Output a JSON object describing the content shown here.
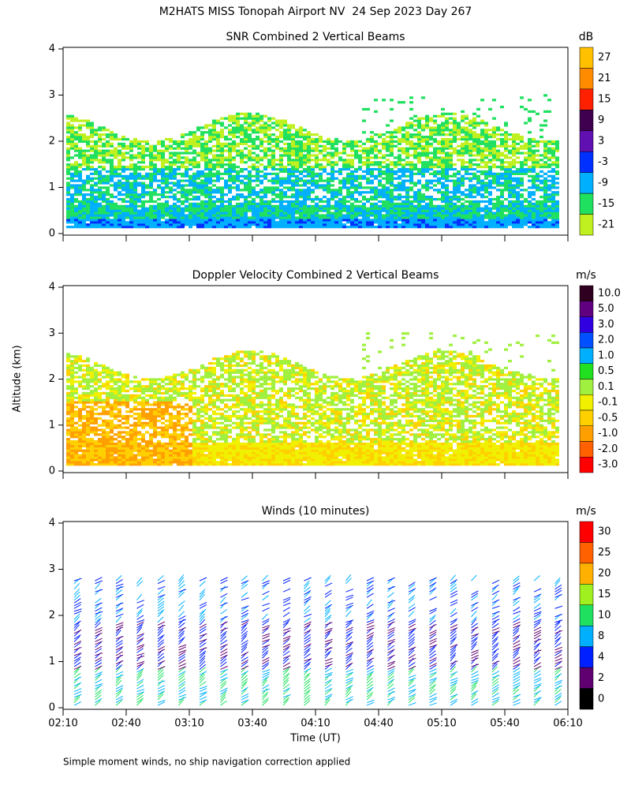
{
  "title": "M2HATS MISS Tonopah Airport NV  24 Sep 2023 Day 267",
  "y_axis_label": "Altitude (km)",
  "x_axis_label": "Time (UT)",
  "x_ticks": [
    "02:10",
    "02:40",
    "03:10",
    "03:40",
    "04:10",
    "04:40",
    "05:10",
    "05:40",
    "06:10"
  ],
  "footnote": "Simple moment winds, no ship navigation correction applied",
  "panels": [
    {
      "title": "SNR Combined 2 Vertical Beams",
      "units": "dB",
      "y_ticks": [
        0,
        1,
        2,
        3,
        4
      ],
      "colorbar": {
        "labels": [
          "27",
          "21",
          "15",
          "9",
          "3",
          "-3",
          "-9",
          "-15",
          "-21"
        ],
        "colors": [
          "#ffc000",
          "#ff8c00",
          "#ff2000",
          "#400050",
          "#6010b0",
          "#0030ff",
          "#00b0ff",
          "#20e060",
          "#c0f020"
        ]
      }
    },
    {
      "title": "Doppler Velocity Combined 2 Vertical Beams",
      "units": "m/s",
      "y_ticks": [
        0,
        1,
        2,
        3,
        4
      ],
      "colorbar": {
        "labels": [
          "10.0",
          "5.0",
          "3.0",
          "2.0",
          "1.0",
          "0.5",
          "0.1",
          "-0.1",
          "-0.5",
          "-1.0",
          "-2.0",
          "-3.0"
        ],
        "colors": [
          "#300020",
          "#600080",
          "#3000e0",
          "#0050ff",
          "#00b0ff",
          "#20e020",
          "#a0f040",
          "#f0f000",
          "#ffd000",
          "#ffa000",
          "#ff6000",
          "#ff0000"
        ]
      }
    },
    {
      "title": "Winds (10 minutes)",
      "units": "m/s",
      "y_ticks": [
        0,
        1,
        2,
        3,
        4
      ],
      "colorbar": {
        "labels": [
          "30",
          "25",
          "20",
          "15",
          "10",
          "8",
          "4",
          "2",
          "0"
        ],
        "colors": [
          "#ff0000",
          "#ff6000",
          "#ffb000",
          "#a0f020",
          "#20e060",
          "#00b0ff",
          "#0020ff",
          "#600070",
          "#000000"
        ]
      }
    }
  ]
}
